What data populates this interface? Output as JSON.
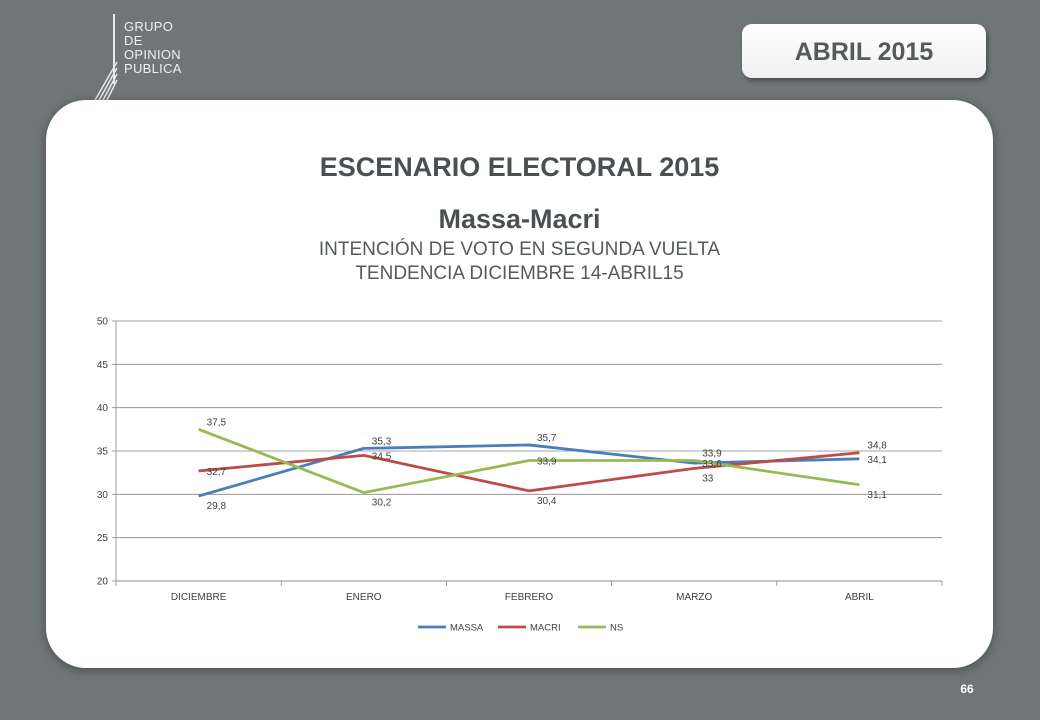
{
  "logo": {
    "lines": [
      "GRUPO",
      "DE",
      "OPINION",
      "PUBLICA"
    ]
  },
  "badge": {
    "label": "ABRIL 2015"
  },
  "slide": {
    "title": "ESCENARIO ELECTORAL 2015",
    "scenario": "Massa-Macri",
    "subtitle_line1": "INTENCIÓN DE VOTO EN SEGUNDA VUELTA",
    "subtitle_line2": "TENDENCIA DICIEMBRE 14-ABRIL15"
  },
  "page_number": "66",
  "colors": {
    "massa": "#4a7ebb",
    "macri": "#be4b48",
    "ns": "#98b954",
    "grid": "#868686",
    "background": "#6f7677"
  },
  "chart_data": {
    "type": "line",
    "categories": [
      "DICIEMBRE",
      "ENERO",
      "FEBRERO",
      "MARZO",
      "ABRIL"
    ],
    "ylim": [
      20,
      50
    ],
    "yticks": [
      20,
      25,
      30,
      35,
      40,
      45,
      50
    ],
    "grid": true,
    "legend_position": "bottom",
    "series": [
      {
        "name": "MASSA",
        "values": [
          29.8,
          35.3,
          35.7,
          33.6,
          34.1
        ],
        "labels": [
          "29,8",
          "35,3",
          "35,7",
          "33,6",
          "34,1"
        ]
      },
      {
        "name": "MACRI",
        "values": [
          32.7,
          34.5,
          30.4,
          33,
          34.8
        ],
        "labels": [
          "32,7",
          "34,5",
          "30,4",
          "33",
          "34,8"
        ]
      },
      {
        "name": "NS",
        "values": [
          37.5,
          30.2,
          33.9,
          33.9,
          31.1
        ],
        "labels": [
          "37,5",
          "30,2",
          "33,9",
          "33,9",
          "31,1"
        ]
      }
    ]
  }
}
